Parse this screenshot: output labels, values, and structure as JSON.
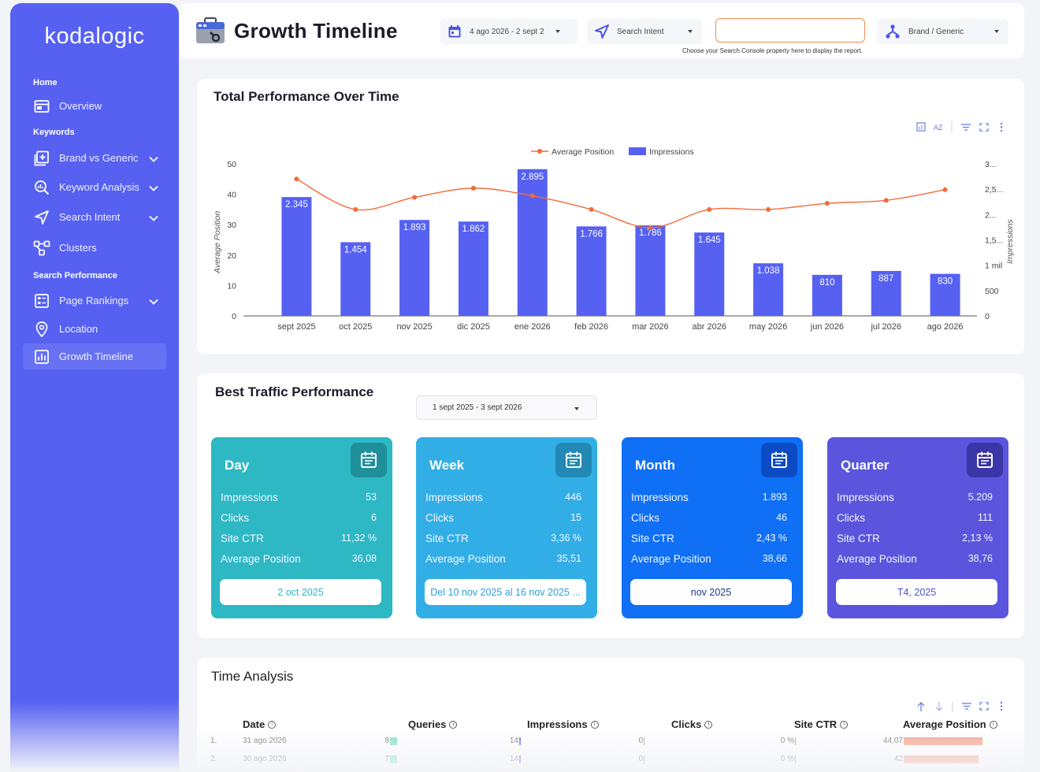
{
  "sidebar": {
    "logo": "kodalogic",
    "sections": {
      "home": "Home",
      "keywords": "Keywords",
      "search_performance": "Search Performance"
    },
    "items": {
      "overview": "Overview",
      "brand_vs_generic": "Brand vs Generic",
      "keyword_analysis": "Keyword Analysis",
      "search_intent": "Search Intent",
      "clusters": "Clusters",
      "page_rankings": "Page Rankings",
      "location": "Location",
      "growth_timeline": "Growth Timeline"
    }
  },
  "header": {
    "title": "Growth Timeline",
    "date_range": "4 ago 2026 - 2 sept 2",
    "search_intent": "Search Intent",
    "property_value": "",
    "brand_generic": "Brand / Generic",
    "property_hint": "Choose your Search Console property here to display the report."
  },
  "total_performance": {
    "title": "Total Performance Over Time"
  },
  "chart_data": {
    "type": "bar+line",
    "title": "Total Performance Over Time",
    "categories": [
      "sept 2025",
      "oct 2025",
      "nov 2025",
      "dic 2025",
      "ene 2026",
      "feb 2026",
      "mar 2026",
      "abr 2026",
      "may 2026",
      "jun 2026",
      "jul 2026",
      "ago 2026"
    ],
    "series": [
      {
        "name": "Impressions",
        "kind": "bar",
        "axis": "right",
        "values": [
          2345,
          1454,
          1893,
          1862,
          2895,
          1766,
          1786,
          1645,
          1038,
          810,
          887,
          830
        ],
        "labels": [
          "2.345",
          "1.454",
          "1.893",
          "1.862",
          "2.895",
          "1.766",
          "1.786",
          "1.645",
          "1.038",
          "810",
          "887",
          "830"
        ],
        "color": "#5661f2"
      },
      {
        "name": "Average Position",
        "kind": "line",
        "axis": "left",
        "values": [
          45,
          35,
          39,
          42,
          39.5,
          35,
          29,
          35,
          35,
          37,
          38,
          41.5
        ],
        "color": "#f26b3a"
      }
    ],
    "ylabel": "Average Position",
    "ylabel_right": "Impressions",
    "ylim": [
      0,
      50
    ],
    "yticks": [
      "0",
      "10",
      "20",
      "30",
      "40",
      "50"
    ],
    "ylim_right": [
      0,
      3000
    ],
    "yticks_right": [
      "0",
      "500",
      "1 mil",
      "1,5...",
      "2...",
      "2,5...",
      "3..."
    ],
    "legend_placement": "top-center"
  },
  "best_traffic": {
    "title": "Best Traffic Performance",
    "date_range": "1 sept 2025 - 3 sept 2026",
    "row_labels": {
      "impressions": "Impressions",
      "clicks": "Clicks",
      "ctr": "Site CTR",
      "avg_pos": "Average Position"
    },
    "tiles": [
      {
        "name": "Day",
        "impressions": "53",
        "clicks": "6",
        "ctr": "11,32 %",
        "avg_pos": "36,08",
        "period": "2 oct 2025",
        "bg": "#2db8c4",
        "icon_bg": "#1f8f9a",
        "text": "#2db8c4"
      },
      {
        "name": "Week",
        "impressions": "446",
        "clicks": "15",
        "ctr": "3,36 %",
        "avg_pos": "35,51",
        "period": "Del 10 nov 2025 al 16 nov 2025 ...",
        "bg": "#32aee6",
        "icon_bg": "#2289b6",
        "text": "#2a9fd9"
      },
      {
        "name": "Month",
        "impressions": "1.893",
        "clicks": "46",
        "ctr": "2,43 %",
        "avg_pos": "38,66",
        "period": "nov 2025",
        "bg": "#0f6ff5",
        "icon_bg": "#0b4bc4",
        "text": "#1b3a8a"
      },
      {
        "name": "Quarter",
        "impressions": "5.209",
        "clicks": "111",
        "ctr": "2,13 %",
        "avg_pos": "38,76",
        "period": "T4, 2025",
        "bg": "#5a55dc",
        "icon_bg": "#3a36a8",
        "text": "#4a52c8"
      }
    ]
  },
  "time_analysis": {
    "title": "Time Analysis",
    "columns": {
      "date": "Date",
      "queries": "Queries",
      "impressions": "Impressions",
      "clicks": "Clicks",
      "ctr": "Site CTR",
      "avg_pos": "Average Position"
    },
    "rows": [
      {
        "num": "1.",
        "date": "31 ago 2026",
        "queries": "8",
        "impressions": "14",
        "clicks": "0",
        "ctr": "0 %",
        "avg_pos": "44,07"
      },
      {
        "num": "2.",
        "date": "30 ago 2026",
        "queries": "7",
        "impressions": "14",
        "clicks": "0",
        "ctr": "0 %",
        "avg_pos": "42"
      }
    ]
  }
}
